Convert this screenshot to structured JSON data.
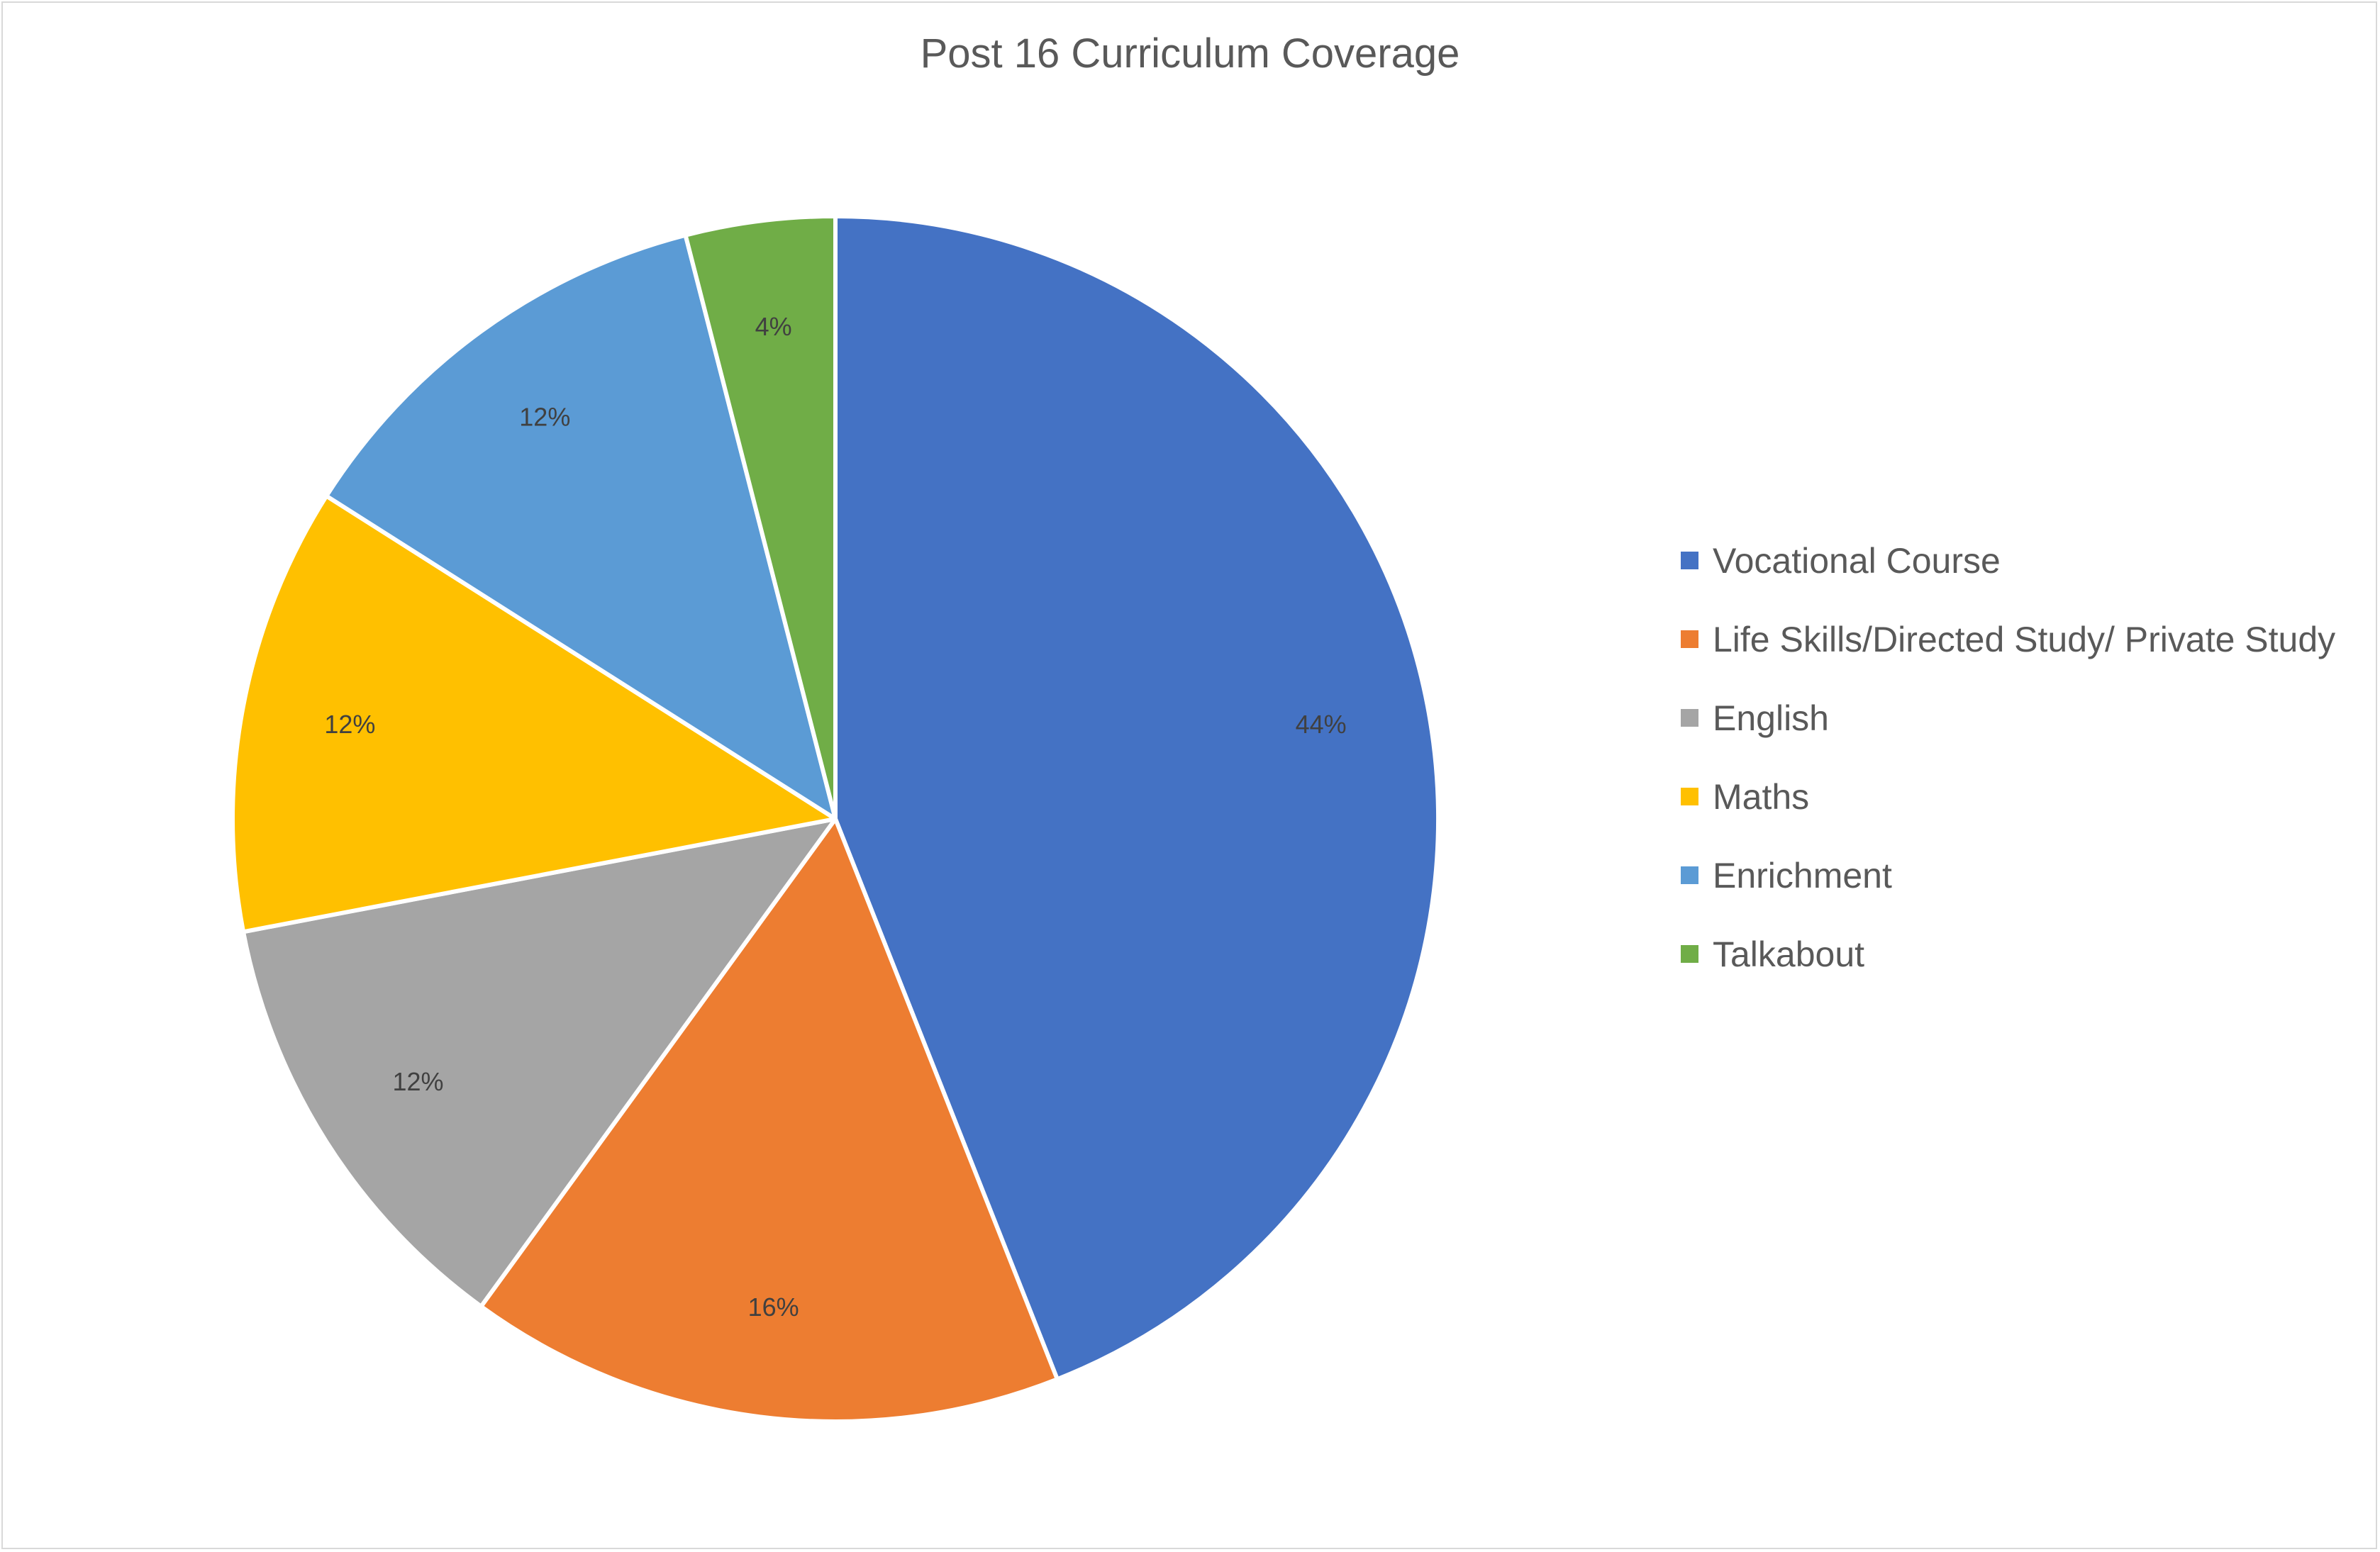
{
  "chart_data": {
    "type": "pie",
    "title": "Post 16 Curriculum Coverage",
    "legend_position": "right",
    "start_angle_deg": 0,
    "direction": "clockwise",
    "slices": [
      {
        "label": "Vocational Course",
        "value": 44,
        "display": "44%",
        "color": "#4472C4"
      },
      {
        "label": "Life Skills/Directed Study/ Private Study",
        "value": 16,
        "display": "16%",
        "color": "#ED7D31"
      },
      {
        "label": "English",
        "value": 12,
        "display": "12%",
        "color": "#A5A5A5"
      },
      {
        "label": "Maths",
        "value": 12,
        "display": "12%",
        "color": "#FFC000"
      },
      {
        "label": "Enrichment",
        "value": 12,
        "display": "12%",
        "color": "#5B9BD5"
      },
      {
        "label": "Talkabout",
        "value": 4,
        "display": "4%",
        "color": "#70AD47"
      }
    ]
  }
}
